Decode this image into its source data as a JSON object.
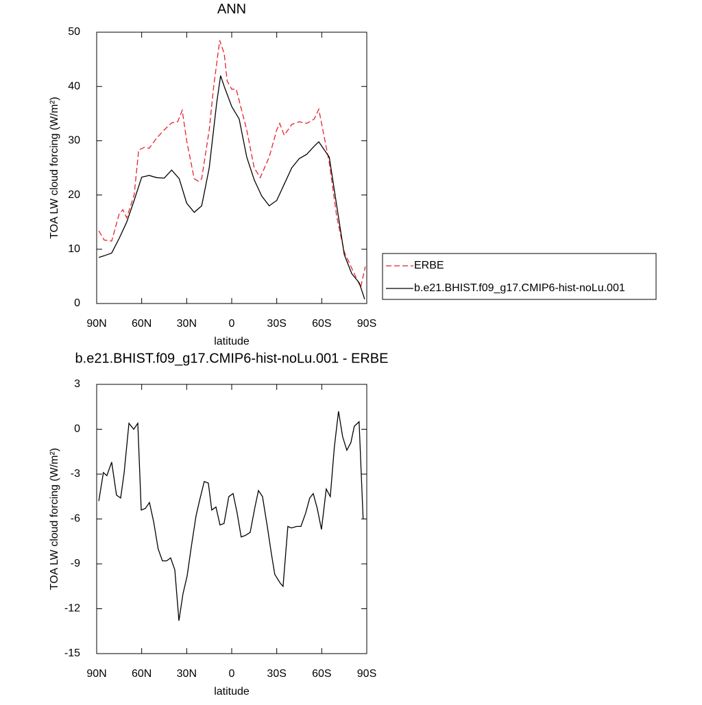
{
  "chart_data": [
    {
      "type": "line",
      "title": "ANN",
      "xlabel": "latitude",
      "ylabel": "TOA LW cloud forcing (W/m²)",
      "xlim": [
        90,
        -90
      ],
      "ylim": [
        0,
        50
      ],
      "xticks": [
        {
          "value": 90,
          "label": "90N"
        },
        {
          "value": 60,
          "label": "60N"
        },
        {
          "value": 30,
          "label": "30N"
        },
        0,
        {
          "value": -30,
          "label": "30S"
        },
        {
          "value": -60,
          "label": "60S"
        },
        {
          "value": -90,
          "label": "90S"
        }
      ],
      "yticks": [
        0,
        10,
        20,
        30,
        40,
        50
      ],
      "legend": "outside-right",
      "series": [
        {
          "name": "ERBE",
          "color": "#e8202a",
          "style": "dashed",
          "x": [
            88.6,
            85,
            80,
            75,
            72.5,
            70,
            65,
            62,
            58,
            55,
            50,
            45,
            40,
            36,
            33,
            30,
            25,
            22,
            20,
            15,
            12,
            8,
            5,
            3,
            0,
            -3,
            -10,
            -15,
            -19,
            -25,
            -30,
            -32,
            -35,
            -40,
            -45,
            -50,
            -55,
            -58,
            -65,
            -70,
            -75,
            -80,
            -86,
            -89
          ],
          "values": [
            13.4,
            11.7,
            11.5,
            16.5,
            17.3,
            15.8,
            20,
            28.3,
            28.8,
            28.6,
            30.5,
            32,
            33.3,
            33.5,
            35.6,
            30,
            23,
            22.5,
            23,
            32,
            40,
            48.5,
            46,
            41,
            39.5,
            39.5,
            32,
            25,
            23.2,
            27,
            32,
            33.2,
            31,
            33,
            33.5,
            33.2,
            34,
            35.8,
            26,
            16,
            9.5,
            6.5,
            3,
            6.8
          ]
        },
        {
          "name": "b.e21.BHIST.f09_g17.CMIP6-hist-noLu.001",
          "color": "#000000",
          "style": "solid",
          "x": [
            88.6,
            85,
            80,
            75,
            70,
            65,
            60,
            55,
            50,
            45,
            40,
            35,
            30,
            25,
            20,
            15,
            10,
            7.4,
            5,
            0,
            -5,
            -10,
            -15,
            -20,
            -25,
            -30,
            -35,
            -40,
            -45,
            -50,
            -55,
            -58,
            -60,
            -65,
            -70,
            -75,
            -80,
            -85,
            -88.6
          ],
          "values": [
            8.5,
            8.8,
            9.3,
            12,
            15,
            19,
            23.3,
            23.6,
            23.2,
            23.1,
            24.6,
            23,
            18.5,
            16.8,
            18,
            25,
            37,
            42,
            40,
            36.3,
            34,
            27,
            22.8,
            19.8,
            18,
            19,
            22,
            25,
            26.7,
            27.5,
            29,
            29.8,
            29,
            27,
            18,
            9,
            5.5,
            3.8,
            0.8
          ]
        }
      ]
    },
    {
      "type": "line",
      "title": "b.e21.BHIST.f09_g17.CMIP6-hist-noLu.001 - ERBE",
      "xlabel": "latitude",
      "ylabel": "TOA LW cloud forcing (W/m²)",
      "xlim": [
        90,
        -90
      ],
      "ylim": [
        -15,
        3
      ],
      "xticks": [
        {
          "value": 90,
          "label": "90N"
        },
        {
          "value": 60,
          "label": "60N"
        },
        {
          "value": 30,
          "label": "30N"
        },
        0,
        {
          "value": -30,
          "label": "30S"
        },
        {
          "value": -60,
          "label": "60S"
        },
        {
          "value": -90,
          "label": "90S"
        }
      ],
      "yticks": [
        -15,
        -12,
        -9,
        -6,
        -3,
        0,
        3
      ],
      "series": [
        {
          "color": "#000000",
          "style": "solid",
          "x": [
            88.6,
            85.5,
            83.2,
            80,
            76.8,
            74,
            71.7,
            68.5,
            65.3,
            62.6,
            60.3,
            57.6,
            54.8,
            52,
            49,
            46.2,
            43.4,
            40.7,
            37.9,
            35.2,
            32.5,
            29.7,
            27,
            23.8,
            21.5,
            18.3,
            15.6,
            13.3,
            10.5,
            7.8,
            5.1,
            1.9,
            -0.9,
            -3.6,
            -6.3,
            -9.1,
            -12.3,
            -15.5,
            -17.8,
            -20.5,
            -23.7,
            -26.4,
            -28.7,
            -32.4,
            -34.2,
            -37.4,
            -39.7,
            -43.3,
            -46.1,
            -49.3,
            -52,
            -54.3,
            -57,
            -59.8,
            -63,
            -65.7,
            -68.4,
            -71.2,
            -73.9,
            -76.7,
            -79.4,
            -81.7,
            -84.9,
            -87.6
          ],
          "values": [
            -4.8,
            -2.9,
            -3.1,
            -2.2,
            -4.4,
            -4.6,
            -2.9,
            0.4,
            0,
            0.4,
            -5.4,
            -5.3,
            -4.9,
            -6.2,
            -8,
            -8.8,
            -8.8,
            -8.6,
            -9.4,
            -12.8,
            -11,
            -9.8,
            -7.9,
            -5.8,
            -4.8,
            -3.5,
            -3.6,
            -5.4,
            -5.2,
            -6.4,
            -6.3,
            -4.5,
            -4.3,
            -5.6,
            -7.2,
            -7.1,
            -6.9,
            -5.2,
            -4.1,
            -4.5,
            -6.5,
            -8.3,
            -9.7,
            -10.3,
            -10.5,
            -6.5,
            -6.6,
            -6.5,
            -6.5,
            -5.6,
            -4.6,
            -4.3,
            -5.3,
            -6.7,
            -4,
            -4.5,
            -1.2,
            1.2,
            -0.5,
            -1.4,
            -0.9,
            0.2,
            0.5,
            -6
          ]
        }
      ]
    }
  ]
}
